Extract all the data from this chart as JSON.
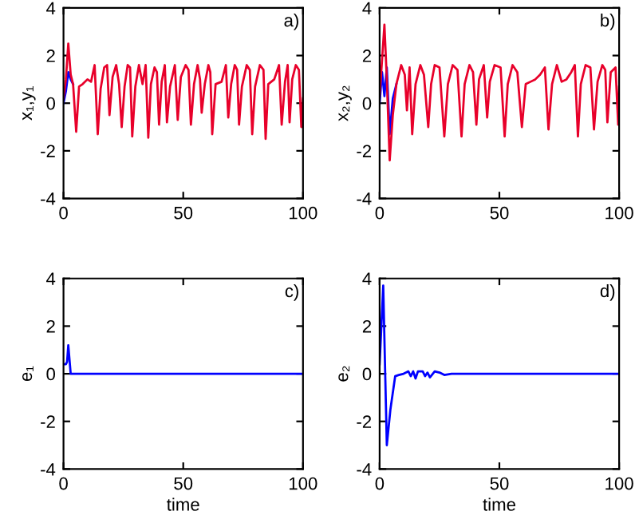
{
  "chart_data": [
    {
      "type": "line",
      "ylabel": "x₁,y₁",
      "annotations": [
        "a)"
      ],
      "xlim": [
        0,
        100
      ],
      "ylim": [
        -4,
        4
      ],
      "xticks": [
        0,
        50,
        100
      ],
      "yticks": [
        -4,
        -2,
        0,
        2,
        4
      ],
      "grid": false,
      "x": [
        0,
        1,
        2,
        3,
        4,
        5.3,
        6.5,
        8,
        10,
        11.5,
        13,
        14.3,
        15.5,
        17,
        18.2,
        19.2,
        20.5,
        22,
        23.2,
        24.3,
        25.5,
        26.8,
        27.8,
        28.7,
        30,
        31.5,
        33,
        34.3,
        35.4,
        36.5,
        38,
        39,
        39.9,
        41,
        42.3,
        43.2,
        44.5,
        46.5,
        47.7,
        49,
        51,
        52.2,
        53.2,
        54.5,
        56,
        57,
        57.7,
        59,
        60.5,
        61.3,
        62.1,
        63.5,
        66,
        67.8,
        68.8,
        70,
        71.5,
        72.5,
        73.3,
        74.5,
        76.5,
        77.8,
        78.8,
        80,
        82,
        83.5,
        84.4,
        85.5,
        88,
        90,
        91.1,
        92.5,
        93.6,
        94.4,
        95.5,
        97,
        98.3,
        99.3,
        100
      ],
      "series": [
        {
          "color": "#0000ff",
          "values": [
            0.0,
            0.5,
            1.3,
            1.0,
            0.8,
            null,
            null,
            null,
            null,
            null,
            null,
            null,
            null,
            null,
            null,
            null,
            null,
            null,
            null,
            null,
            null,
            null,
            null,
            null,
            null,
            null,
            null,
            null,
            null,
            null,
            null,
            null,
            null,
            null,
            null,
            null,
            null,
            null,
            null,
            null,
            null,
            null,
            null,
            null,
            null,
            null,
            null,
            null,
            null,
            null,
            null,
            null,
            null,
            null,
            null,
            null,
            null,
            null,
            null,
            null,
            null,
            null,
            null,
            null,
            null,
            null,
            null,
            null,
            null,
            null,
            null,
            null,
            null,
            null,
            null,
            null,
            null,
            null,
            null
          ]
        },
        {
          "color": "#e8002a",
          "values": [
            0.2,
            1.0,
            2.5,
            1.2,
            0.8,
            -1.2,
            0.7,
            0.8,
            1.0,
            0.9,
            1.6,
            -1.3,
            0.6,
            1.5,
            1.6,
            -0.5,
            1.1,
            1.6,
            0.8,
            -1.0,
            0.7,
            1.6,
            1.5,
            -1.4,
            0.7,
            1.6,
            0.8,
            1.6,
            -1.45,
            0.8,
            1.5,
            1.3,
            -0.9,
            0.9,
            1.6,
            -0.8,
            0.7,
            1.6,
            -0.7,
            1.1,
            1.6,
            1.4,
            -0.9,
            0.8,
            1.6,
            1.0,
            -0.4,
            0.8,
            1.6,
            1.3,
            -1.3,
            0.8,
            0.9,
            1.6,
            -0.6,
            0.8,
            1.6,
            1.4,
            -0.9,
            0.7,
            1.6,
            1.4,
            -1.3,
            0.7,
            1.6,
            1.4,
            -1.5,
            0.8,
            1.0,
            1.6,
            -0.9,
            0.9,
            1.6,
            -0.8,
            1.0,
            1.6,
            1.4,
            -1.0,
            0.2
          ]
        }
      ]
    },
    {
      "type": "line",
      "ylabel": "x₂,y₂",
      "annotations": [
        "b)"
      ],
      "xlim": [
        0,
        100
      ],
      "ylim": [
        -4,
        4
      ],
      "xticks": [
        0,
        50,
        100
      ],
      "yticks": [
        -4,
        -2,
        0,
        2,
        4
      ],
      "grid": false,
      "x": [
        0,
        1,
        2,
        3,
        4.2,
        5.5,
        7,
        9,
        10.5,
        11.4,
        12.5,
        13.6,
        15,
        17,
        18.5,
        20.3,
        21.5,
        23,
        25,
        27,
        28.5,
        30.5,
        32.5,
        34.2,
        35.5,
        37.5,
        39,
        40.4,
        41.5,
        43.5,
        44.9,
        46,
        48,
        50.5,
        52.2,
        53.5,
        55.5,
        57.5,
        59.4,
        61,
        63,
        65,
        67,
        69,
        70.5,
        72,
        74,
        76,
        78,
        80,
        81.5,
        82.8,
        84,
        86,
        88,
        89.5,
        91,
        93,
        94.2,
        95.1,
        96.5,
        98.5,
        99.6,
        100
      ],
      "series": [
        {
          "color": "#0000ff",
          "values": [
            0.0,
            1.3,
            0.3,
            1.5,
            -1.3,
            0.2,
            0.8,
            null,
            null,
            null,
            null,
            null,
            null,
            null,
            null,
            null,
            null,
            null,
            null,
            null,
            null,
            null,
            null,
            null,
            null,
            null,
            null,
            null,
            null,
            null,
            null,
            null,
            null,
            null,
            null,
            null,
            null,
            null,
            null,
            null,
            null,
            null,
            null,
            null,
            null,
            null,
            null,
            null,
            null,
            null,
            null,
            null,
            null,
            null,
            null,
            null,
            null,
            null,
            null,
            null,
            null,
            null,
            null,
            null
          ]
        },
        {
          "color": "#e8002a",
          "values": [
            0.3,
            1.8,
            3.3,
            1.0,
            -2.4,
            -0.5,
            0.8,
            1.6,
            1.2,
            -0.3,
            1.5,
            -1.3,
            0.8,
            1.6,
            1.2,
            -1.0,
            0.8,
            1.6,
            1.5,
            -1.4,
            0.8,
            1.6,
            1.4,
            -1.4,
            0.8,
            1.6,
            1.3,
            -0.9,
            1.0,
            1.6,
            -0.6,
            0.9,
            1.6,
            1.5,
            -1.4,
            0.8,
            1.6,
            1.3,
            -1.0,
            0.8,
            0.9,
            1.0,
            1.2,
            1.5,
            -1.1,
            0.8,
            1.6,
            0.9,
            1.0,
            1.3,
            1.6,
            -1.4,
            0.8,
            1.6,
            1.5,
            -1.1,
            0.9,
            1.6,
            1.4,
            -0.8,
            1.3,
            1.5,
            -0.9,
            0.7
          ]
        }
      ]
    },
    {
      "type": "line",
      "ylabel": "e₁",
      "xlabel": "time",
      "annotations": [
        "c)"
      ],
      "xlim": [
        0,
        100
      ],
      "ylim": [
        -4,
        4
      ],
      "xticks": [
        0,
        50,
        100
      ],
      "yticks": [
        -4,
        -2,
        0,
        2,
        4
      ],
      "grid": false,
      "x": [
        0,
        1,
        1.5,
        2,
        3,
        100
      ],
      "series": [
        {
          "color": "#0000ff",
          "values": [
            0.4,
            0.4,
            0.5,
            1.2,
            0.0,
            0.0
          ]
        }
      ]
    },
    {
      "type": "line",
      "ylabel": "e₂",
      "xlabel": "time",
      "annotations": [
        "d)"
      ],
      "xlim": [
        0,
        100
      ],
      "ylim": [
        -4,
        4
      ],
      "xticks": [
        0,
        50,
        100
      ],
      "yticks": [
        -4,
        -2,
        0,
        2,
        4
      ],
      "grid": false,
      "x": [
        0,
        1.5,
        3,
        4.5,
        6.5,
        8,
        10,
        12,
        13,
        14,
        15,
        16,
        18,
        19,
        20,
        21,
        23,
        25,
        27,
        30,
        40,
        50,
        60,
        70,
        80,
        90,
        100
      ],
      "series": [
        {
          "color": "#0000ff",
          "values": [
            0.4,
            3.7,
            -3.0,
            -1.5,
            -0.1,
            -0.05,
            0.0,
            0.1,
            -0.1,
            0.1,
            -0.2,
            0.1,
            0.1,
            -0.1,
            0.05,
            -0.15,
            0.1,
            0.05,
            -0.05,
            0.0,
            0.0,
            0.0,
            0.0,
            0.0,
            0.0,
            0.0,
            0.0
          ]
        }
      ]
    }
  ]
}
